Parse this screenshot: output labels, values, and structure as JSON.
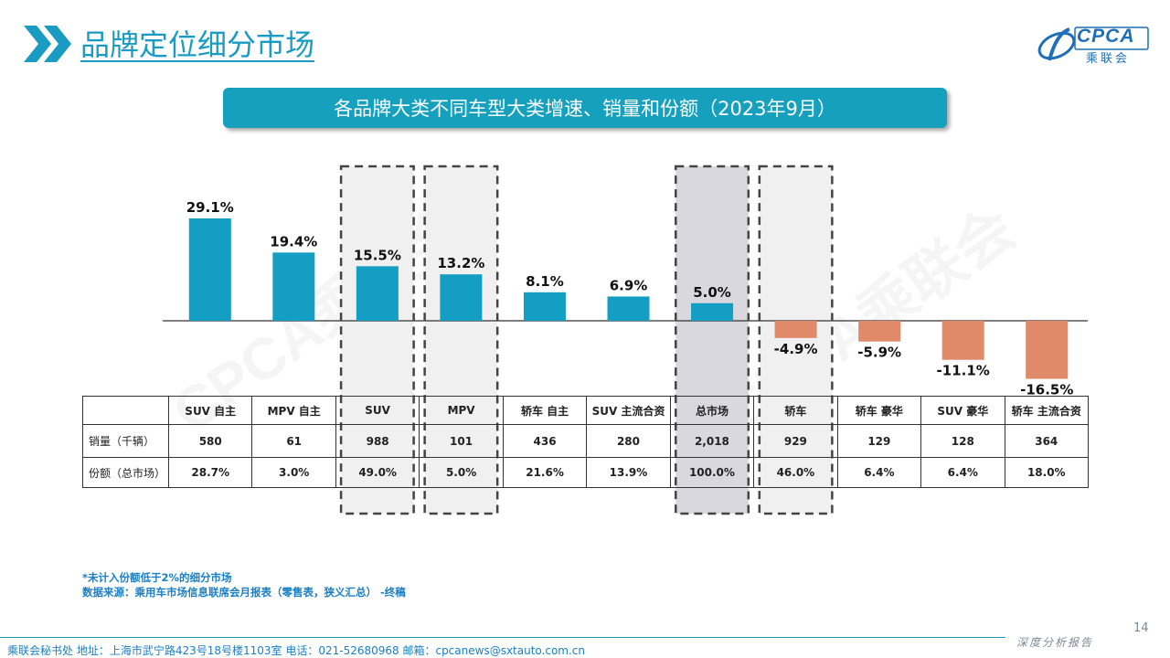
{
  "page": {
    "title": "品牌定位细分市场",
    "banner": "各品牌大类不同车型大类增速、销量和份额（2023年9月）",
    "logo_text": "CPCA",
    "logo_sub": "乘联会",
    "watermarks": [
      "CPCA乘联会",
      "CPCA乘联会"
    ],
    "footnote_1": "*未计入份额低于2%的细分市场",
    "footnote_2": "数据来源：乘用车市场信息联席会月报表（零售表，狭义汇总） -终稿",
    "footer_left": "乘联会秘书处   地址：上海市武宁路423号18号楼1103室  电话：021-52680968   邮箱：cpcanews@sxtauto.com.cn",
    "footer_right": "深度分析报告",
    "page_number": "14"
  },
  "colors": {
    "positive": "#159ec3",
    "negative": "#e08a6a",
    "accent": "#1a9bc2",
    "highlight_light": "#f0f0f0",
    "highlight_dark": "#d8d8de"
  },
  "chart_data": {
    "type": "bar",
    "categories": [
      "SUV 自主",
      "MPV 自主",
      "SUV",
      "MPV",
      "轿车 自主",
      "SUV 主流合资",
      "总市场",
      "轿车",
      "轿车 豪华",
      "SUV 豪华",
      "轿车 主流合资"
    ],
    "values": [
      29.1,
      19.4,
      15.5,
      13.2,
      8.1,
      6.9,
      5.0,
      -4.9,
      -5.9,
      -11.1,
      -16.5
    ],
    "value_labels": [
      "29.1%",
      "19.4%",
      "15.5%",
      "13.2%",
      "8.1%",
      "6.9%",
      "5.0%",
      "-4.9%",
      "-5.9%",
      "-11.1%",
      "-16.5%"
    ],
    "highlighted": [
      "SUV",
      "MPV",
      "总市场",
      "轿车"
    ],
    "highlight_style": {
      "SUV": "light",
      "MPV": "light",
      "总市场": "dark",
      "轿车": "light"
    },
    "ylim": [
      -17,
      31
    ],
    "grid": false,
    "legend": "none"
  },
  "table": {
    "row_labels": [
      "销量（千辆）",
      "份额（总市场）"
    ],
    "headers": [
      "SUV 自主",
      "MPV 自主",
      "SUV",
      "MPV",
      "轿车 自主",
      "SUV 主流合资",
      "总市场",
      "轿车",
      "轿车 豪华",
      "SUV 豪华",
      "轿车 主流合资"
    ],
    "sales": [
      "580",
      "61",
      "988",
      "101",
      "436",
      "280",
      "2,018",
      "929",
      "129",
      "128",
      "364"
    ],
    "share": [
      "28.7%",
      "3.0%",
      "49.0%",
      "5.0%",
      "21.6%",
      "13.9%",
      "100.0%",
      "46.0%",
      "6.4%",
      "6.4%",
      "18.0%"
    ]
  }
}
